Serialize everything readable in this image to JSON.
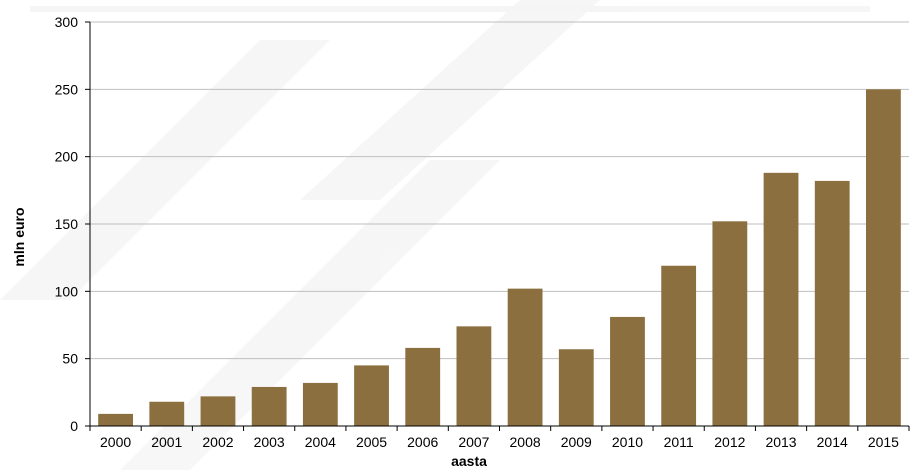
{
  "chart_data": {
    "type": "bar",
    "title": "",
    "xlabel": "aasta",
    "ylabel": "mln euro",
    "categories": [
      "2000",
      "2001",
      "2002",
      "2003",
      "2004",
      "2005",
      "2006",
      "2007",
      "2008",
      "2009",
      "2010",
      "2011",
      "2012",
      "2013",
      "2014",
      "2015"
    ],
    "values": [
      9,
      18,
      22,
      29,
      32,
      45,
      58,
      74,
      102,
      57,
      81,
      119,
      152,
      188,
      182,
      250
    ],
    "ylim": [
      0,
      300
    ],
    "yticks": [
      "0",
      "50",
      "100",
      "150",
      "200",
      "250",
      "300"
    ],
    "grid": true,
    "legend": "none",
    "bar_color": "#8b6f3e",
    "gridline_color": "#bfbfbf"
  }
}
